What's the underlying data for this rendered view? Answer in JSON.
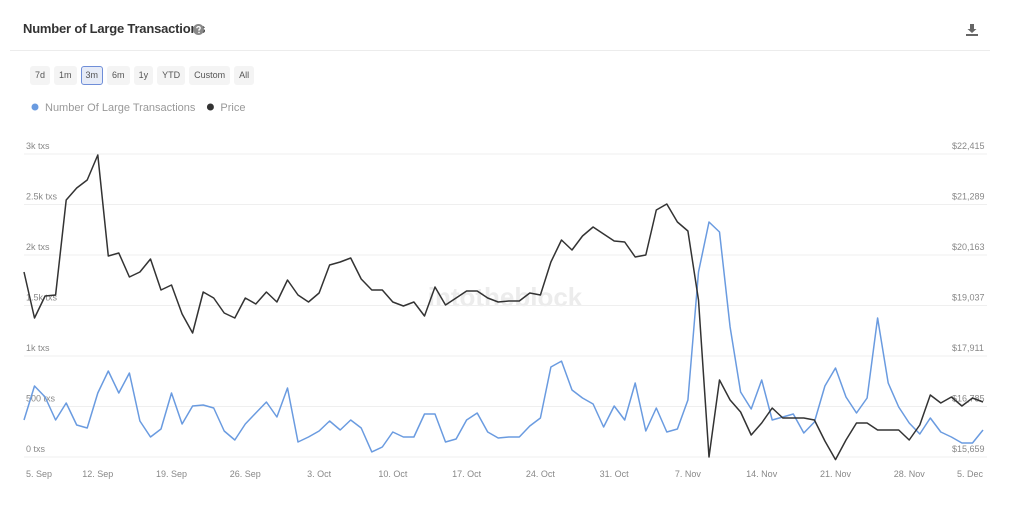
{
  "header": {
    "title": "Number of Large Transactions"
  },
  "range_buttons": [
    "7d",
    "1m",
    "3m",
    "6m",
    "1y",
    "YTD",
    "Custom",
    "All"
  ],
  "selected_range": "3m",
  "watermark": "intotheblock",
  "chart_data": {
    "type": "line",
    "categories": [
      "5. Sep",
      null,
      null,
      null,
      null,
      null,
      null,
      "12. Sep",
      null,
      null,
      null,
      null,
      null,
      null,
      "19. Sep",
      null,
      null,
      null,
      null,
      null,
      null,
      "26. Sep",
      null,
      null,
      null,
      null,
      null,
      null,
      "3. Oct",
      null,
      null,
      null,
      null,
      null,
      null,
      "10. Oct",
      null,
      null,
      null,
      null,
      null,
      null,
      "17. Oct",
      null,
      null,
      null,
      null,
      null,
      null,
      "24. Oct",
      null,
      null,
      null,
      null,
      null,
      null,
      "31. Oct",
      null,
      null,
      null,
      null,
      null,
      null,
      "7. Nov",
      null,
      null,
      null,
      null,
      null,
      null,
      "14. Nov",
      null,
      null,
      null,
      null,
      null,
      null,
      "21. Nov",
      null,
      null,
      null,
      null,
      null,
      null,
      "28. Nov",
      null,
      null,
      null,
      null,
      null,
      null,
      "5. Dec"
    ],
    "series": [
      {
        "name": "Number Of Large Transactions",
        "color": "#6a9be0",
        "values": [
          366,
          703,
          594,
          366,
          535,
          317,
          287,
          634,
          851,
          634,
          832,
          356,
          198,
          277,
          634,
          327,
          505,
          515,
          485,
          257,
          168,
          327,
          436,
          545,
          396,
          683,
          149,
          198,
          257,
          356,
          267,
          366,
          287,
          50,
          99,
          248,
          198,
          198,
          426,
          426,
          149,
          178,
          366,
          436,
          248,
          188,
          198,
          198,
          307,
          386,
          891,
          950,
          663,
          584,
          525,
          297,
          505,
          366,
          733,
          257,
          485,
          248,
          277,
          564,
          1832,
          2327,
          2228,
          1287,
          644,
          475,
          762,
          366,
          396,
          426,
          238,
          347,
          703,
          881,
          594,
          436,
          584,
          1376,
          733,
          495,
          337,
          228,
          386,
          248,
          198,
          139,
          139,
          267
        ]
      },
      {
        "name": "Price",
        "color": "#333333",
        "axis": "y2",
        "values": [
          19784,
          18758,
          19249,
          19271,
          21389,
          21657,
          21835,
          22393,
          20141,
          20208,
          19672,
          19784,
          20074,
          19383,
          19494,
          18847,
          18424,
          19338,
          19204,
          18870,
          18758,
          19204,
          19070,
          19338,
          19115,
          19606,
          19271,
          19115,
          19316,
          19940,
          20007,
          20096,
          19628,
          19383,
          19383,
          19115,
          19026,
          19115,
          18803,
          19450,
          19048,
          19204,
          19360,
          19360,
          19204,
          19115,
          19137,
          19137,
          19316,
          19271,
          20007,
          20497,
          20274,
          20587,
          20787,
          20631,
          20475,
          20453,
          20118,
          20163,
          21166,
          21300,
          20899,
          20698,
          19160,
          15659,
          17376,
          16930,
          16662,
          16150,
          16417,
          16752,
          16529,
          16529,
          16529,
          16484,
          16016,
          15600,
          16038,
          16417,
          16417,
          16261,
          16261,
          16261,
          16038,
          16373,
          17041,
          16863,
          16997,
          16796,
          16975,
          16885
        ]
      }
    ],
    "ylim": [
      0,
      3000
    ],
    "yticks": [
      {
        "value": 0,
        "label": "0 txs"
      },
      {
        "value": 500,
        "label": "500 txs"
      },
      {
        "value": 1000,
        "label": "1k txs"
      },
      {
        "value": 1500,
        "label": "1.5k txs"
      },
      {
        "value": 2000,
        "label": "2k txs"
      },
      {
        "value": 2500,
        "label": "2.5k txs"
      },
      {
        "value": 3000,
        "label": "3k txs"
      }
    ],
    "y2lim": [
      15659,
      22415
    ],
    "y2ticks": [
      {
        "value": 15659,
        "label": "$15,659"
      },
      {
        "value": 16785,
        "label": "$16,785"
      },
      {
        "value": 17911,
        "label": "$17,911"
      },
      {
        "value": 19037,
        "label": "$19,037"
      },
      {
        "value": 20163,
        "label": "$20,163"
      },
      {
        "value": 21289,
        "label": "$21,289"
      },
      {
        "value": 22415,
        "label": "$22,415"
      }
    ],
    "grid": true
  }
}
